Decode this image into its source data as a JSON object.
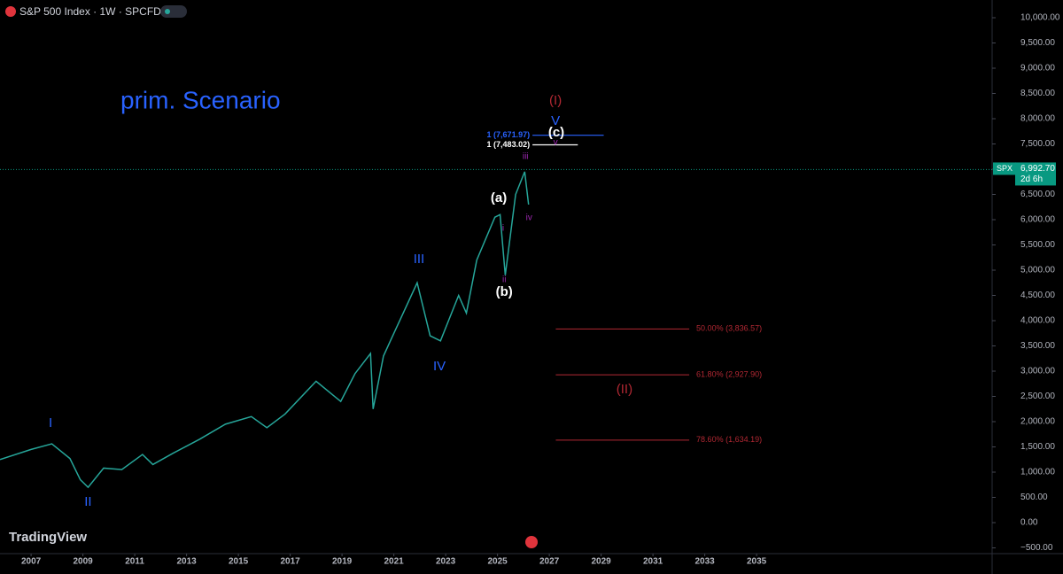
{
  "chart_data": {
    "type": "line",
    "title": "S&P 500 Index · 1W · SPCFD",
    "scenario_label": "prim. Scenario",
    "logo": "TradingView",
    "color": "#26a69a",
    "x": [
      2005.8,
      2007.0,
      2007.8,
      2008.5,
      2008.9,
      2009.2,
      2009.8,
      2010.5,
      2011.3,
      2011.7,
      2012.5,
      2013.5,
      2014.5,
      2015.5,
      2016.1,
      2016.8,
      2018.0,
      2018.95,
      2019.5,
      2020.1,
      2020.2,
      2020.6,
      2021.0,
      2021.9,
      2022.4,
      2022.8,
      2023.5,
      2023.8,
      2024.2,
      2024.9,
      2025.1,
      2025.3,
      2025.7,
      2026.05,
      2026.2
    ],
    "values": [
      1250,
      1450,
      1560,
      1270,
      850,
      700,
      1080,
      1050,
      1350,
      1150,
      1380,
      1650,
      1950,
      2100,
      1880,
      2150,
      2800,
      2400,
      2950,
      3350,
      2250,
      3300,
      3750,
      4750,
      3700,
      3600,
      4500,
      4150,
      5200,
      6050,
      6100,
      4900,
      6500,
      6950,
      6300
    ],
    "xlim": [
      2005.8,
      2044.09
    ],
    "ylim": [
      -614,
      10351
    ],
    "xticks": [
      2007,
      2009,
      2011,
      2013,
      2015,
      2017,
      2019,
      2021,
      2023,
      2025,
      2027,
      2029,
      2031,
      2033,
      2035
    ],
    "yticks": [
      {
        "value": 10000,
        "label": "10,000.00"
      },
      {
        "value": 9500,
        "label": "9,500.00"
      },
      {
        "value": 9000,
        "label": "9,000.00"
      },
      {
        "value": 8500,
        "label": "8,500.00"
      },
      {
        "value": 8000,
        "label": "8,000.00"
      },
      {
        "value": 7500,
        "label": "7,500.00"
      },
      {
        "value": 7000,
        "label": "7,000.00"
      },
      {
        "value": 6500,
        "label": "6,500.00"
      },
      {
        "value": 6000,
        "label": "6,000.00"
      },
      {
        "value": 5500,
        "label": "5,500.00"
      },
      {
        "value": 5000,
        "label": "5,000.00"
      },
      {
        "value": 4500,
        "label": "4,500.00"
      },
      {
        "value": 4000,
        "label": "4,000.00"
      },
      {
        "value": 3500,
        "label": "3,500.00"
      },
      {
        "value": 3000,
        "label": "3,000.00"
      },
      {
        "value": 2500,
        "label": "2,500.00"
      },
      {
        "value": 2000,
        "label": "2,000.00"
      },
      {
        "value": 1500,
        "label": "1,500.00"
      },
      {
        "value": 1000,
        "label": "1,000.00"
      },
      {
        "value": 500,
        "label": "500.00"
      },
      {
        "value": 0,
        "label": "0.00"
      },
      {
        "value": -500,
        "label": "−500.00"
      }
    ],
    "last_price": {
      "symbol": "SPX",
      "value": 6992.7,
      "label": "6,992.70",
      "countdown": "2d 6h"
    },
    "fib_color": "#b22833",
    "fib_range": [
      2027.25,
      2032.4
    ],
    "fib_levels": [
      {
        "value": 3836.57,
        "label": "50.00% (3,836.57)"
      },
      {
        "value": 2927.9,
        "label": "61.80% (2,927.90)"
      },
      {
        "value": 1634.19,
        "label": "78.60% (1,634.19)"
      }
    ],
    "targets": [
      {
        "value": 7671.97,
        "label": "1 (7,671.97)",
        "range": [
          2026.35,
          2029.1
        ],
        "color": "#2962ff"
      },
      {
        "value": 7483.02,
        "label": "1 (7,483.02)",
        "range": [
          2026.35,
          2028.1
        ],
        "color": "#ffffff"
      }
    ],
    "annotations": [
      {
        "text": "I",
        "x": 2007.75,
        "y": 1965,
        "color": "#2962ff"
      },
      {
        "text": "II",
        "x": 2009.2,
        "y": 404,
        "color": "#2962ff"
      },
      {
        "text": "III",
        "x": 2021.97,
        "y": 5210,
        "color": "#2962ff"
      },
      {
        "text": "IV",
        "x": 2022.76,
        "y": 3088,
        "color": "#2962ff"
      },
      {
        "text": "V",
        "x": 2027.24,
        "y": 7947,
        "color": "#2962ff"
      },
      {
        "text": "(I)",
        "x": 2027.24,
        "y": 8350,
        "color": "#b22833"
      },
      {
        "text": "(II)",
        "x": 2029.9,
        "y": 2632,
        "color": "#b22833"
      },
      {
        "text": "(a)",
        "x": 2025.05,
        "y": 6421,
        "color": "#ffffff"
      },
      {
        "text": "(b)",
        "x": 2025.26,
        "y": 4561,
        "color": "#ffffff"
      },
      {
        "text": "(c)",
        "x": 2027.27,
        "y": 7719,
        "color": "#ffffff"
      },
      {
        "text": "i",
        "x": 2025.22,
        "y": 5825,
        "color": "#9c27b0"
      },
      {
        "text": "ii",
        "x": 2025.26,
        "y": 4807,
        "color": "#9c27b0"
      },
      {
        "text": "iii",
        "x": 2026.08,
        "y": 7246,
        "color": "#9c27b0"
      },
      {
        "text": "iv",
        "x": 2026.22,
        "y": 6035,
        "color": "#9c27b0"
      },
      {
        "text": "v",
        "x": 2027.24,
        "y": 7526,
        "color": "#9c27b0"
      }
    ]
  }
}
